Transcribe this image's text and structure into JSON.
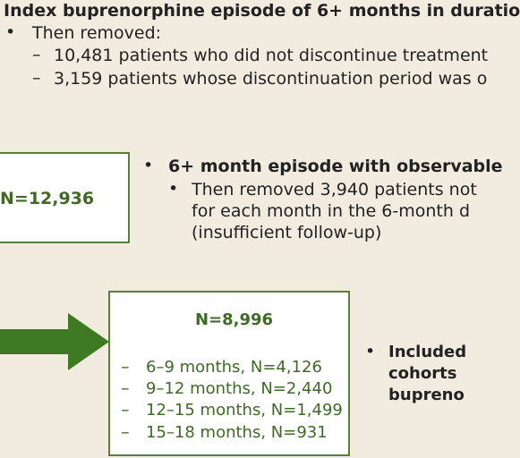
{
  "section1": {
    "title": "Index buprenorphine episode of 6+ months in duratio",
    "removed_label": "Then removed:",
    "items": [
      "10,481 patients who did not discontinue treatment",
      "3,159 patients whose discontinuation period was o"
    ]
  },
  "box1": {
    "count": "N=12,936"
  },
  "section2": {
    "title": "6+ month episode with observable",
    "removed_lines": [
      "Then removed 3,940 patients not",
      "for each month in the 6-month d",
      "(insufficient follow-up)"
    ]
  },
  "box2": {
    "count": "N=8,996",
    "items": [
      "6–9 months, N=4,126",
      "9–12 months, N=2,440",
      "12–15 months, N=1,499",
      "15–18 months, N=931"
    ]
  },
  "section3": {
    "lines": [
      "Included",
      "cohorts",
      "bupreno"
    ]
  },
  "colors": {
    "background": "#f2ebdf",
    "accent_green": "#3f6a26",
    "arrow_green": "#3e7a22",
    "box_border": "#5a7f3a"
  }
}
